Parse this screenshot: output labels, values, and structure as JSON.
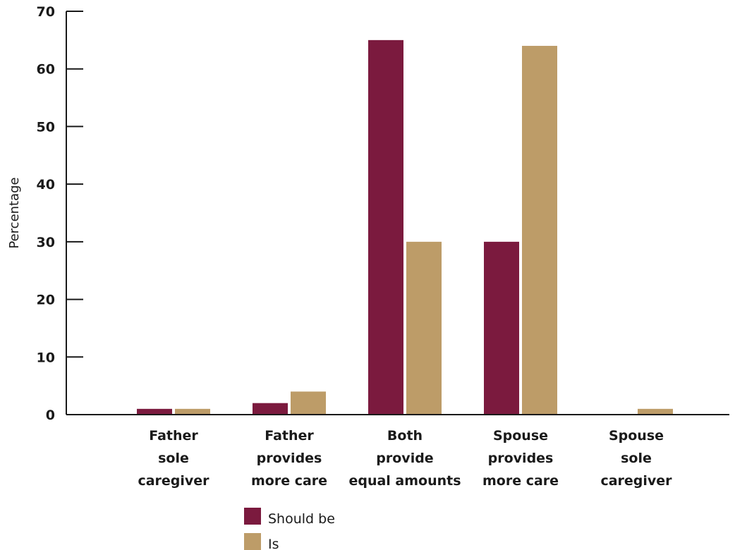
{
  "chart_data": {
    "type": "bar",
    "title": "",
    "xlabel": "",
    "ylabel": "Percentage",
    "ylim": [
      0,
      70
    ],
    "yticks": [
      0,
      10,
      20,
      30,
      40,
      50,
      60,
      70
    ],
    "grid": false,
    "legend_position": "bottom",
    "categories": [
      [
        "Father",
        "sole",
        "caregiver"
      ],
      [
        "Father",
        "provides",
        "more care"
      ],
      [
        "Both",
        "provide",
        "equal amounts"
      ],
      [
        "Spouse",
        "provides",
        "more care"
      ],
      [
        "Spouse",
        "sole",
        "caregiver"
      ]
    ],
    "series": [
      {
        "name": "Should be",
        "color": "#7b1a3e",
        "values": [
          1,
          2,
          65,
          30,
          0.1
        ]
      },
      {
        "name": "Is",
        "color": "#bd9c68",
        "values": [
          1,
          4,
          30,
          64,
          1
        ]
      }
    ]
  }
}
